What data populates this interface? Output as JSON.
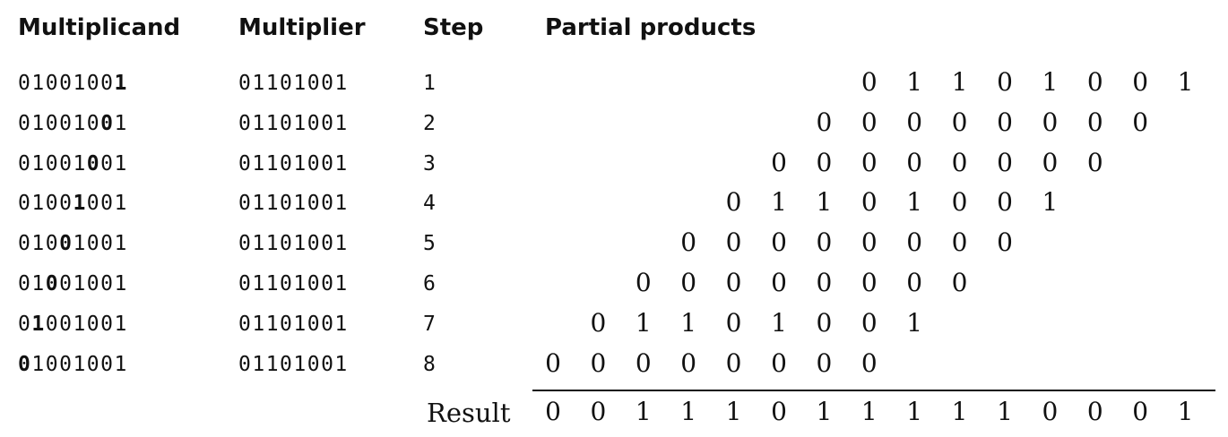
{
  "headers": {
    "multiplicand": "Multiplicand",
    "multiplier": "Multiplier",
    "step": "Step",
    "partial_products": "Partial products"
  },
  "rows": [
    {
      "multiplicand": "01001001",
      "bold_index": 7,
      "multiplier": "01101001",
      "step": "1",
      "partial": [
        "0",
        "1",
        "1",
        "0",
        "1",
        "0",
        "0",
        "1"
      ]
    },
    {
      "multiplicand": "01001001",
      "bold_index": 6,
      "multiplier": "01101001",
      "step": "2",
      "partial": [
        "0",
        "0",
        "0",
        "0",
        "0",
        "0",
        "0",
        "0"
      ]
    },
    {
      "multiplicand": "01001001",
      "bold_index": 5,
      "multiplier": "01101001",
      "step": "3",
      "partial": [
        "0",
        "0",
        "0",
        "0",
        "0",
        "0",
        "0",
        "0"
      ]
    },
    {
      "multiplicand": "01001001",
      "bold_index": 4,
      "multiplier": "01101001",
      "step": "4",
      "partial": [
        "0",
        "1",
        "1",
        "0",
        "1",
        "0",
        "0",
        "1"
      ]
    },
    {
      "multiplicand": "01001001",
      "bold_index": 3,
      "multiplier": "01101001",
      "step": "5",
      "partial": [
        "0",
        "0",
        "0",
        "0",
        "0",
        "0",
        "0",
        "0"
      ]
    },
    {
      "multiplicand": "01001001",
      "bold_index": 2,
      "multiplier": "01101001",
      "step": "6",
      "partial": [
        "0",
        "0",
        "0",
        "0",
        "0",
        "0",
        "0",
        "0"
      ]
    },
    {
      "multiplicand": "01001001",
      "bold_index": 1,
      "multiplier": "01101001",
      "step": "7",
      "partial": [
        "0",
        "1",
        "1",
        "0",
        "1",
        "0",
        "0",
        "1"
      ]
    },
    {
      "multiplicand": "01001001",
      "bold_index": 0,
      "multiplier": "01101001",
      "step": "8",
      "partial": [
        "0",
        "0",
        "0",
        "0",
        "0",
        "0",
        "0",
        "0"
      ]
    }
  ],
  "result": {
    "label": "Result",
    "digits": [
      "0",
      "0",
      "1",
      "1",
      "1",
      "0",
      "1",
      "1",
      "1",
      "1",
      "1",
      "0",
      "0",
      "0",
      "1"
    ]
  }
}
